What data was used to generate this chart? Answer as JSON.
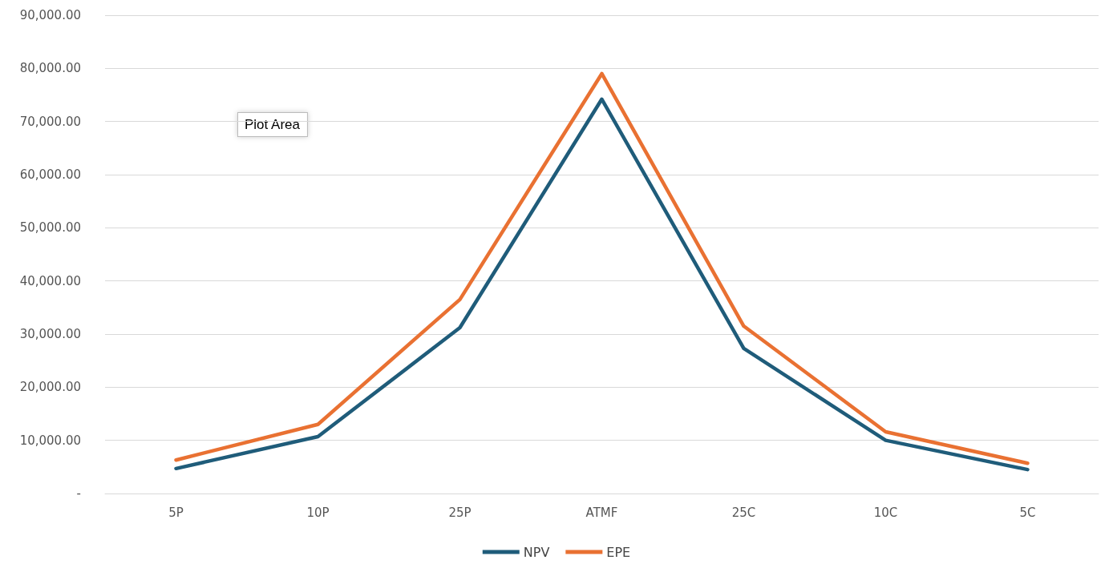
{
  "chart_data": {
    "type": "line",
    "categories": [
      "5P",
      "10P",
      "25P",
      "ATMF",
      "25C",
      "10C",
      "5C"
    ],
    "series": [
      {
        "name": "NPV",
        "color": "#1f5c7a",
        "values": [
          4700,
          10700,
          31200,
          74200,
          27300,
          10000,
          4500
        ]
      },
      {
        "name": "EPE",
        "color": "#e97132",
        "values": [
          6300,
          13000,
          36500,
          79000,
          31500,
          11600,
          5700
        ]
      }
    ],
    "ylim": [
      0,
      90000
    ],
    "yticks": [
      {
        "value": 0,
        "label": "-"
      },
      {
        "value": 10000,
        "label": "10,000.00"
      },
      {
        "value": 20000,
        "label": "20,000.00"
      },
      {
        "value": 30000,
        "label": "30,000.00"
      },
      {
        "value": 40000,
        "label": "40,000.00"
      },
      {
        "value": 50000,
        "label": "50,000.00"
      },
      {
        "value": 60000,
        "label": "60,000.00"
      },
      {
        "value": 70000,
        "label": "70,000.00"
      },
      {
        "value": 80000,
        "label": "80,000.00"
      },
      {
        "value": 90000,
        "label": "90,000.00"
      }
    ],
    "grid": "y",
    "legend": "bottom",
    "marker": "none",
    "line_style": "solid",
    "annotations": [
      "Plot Area"
    ]
  }
}
